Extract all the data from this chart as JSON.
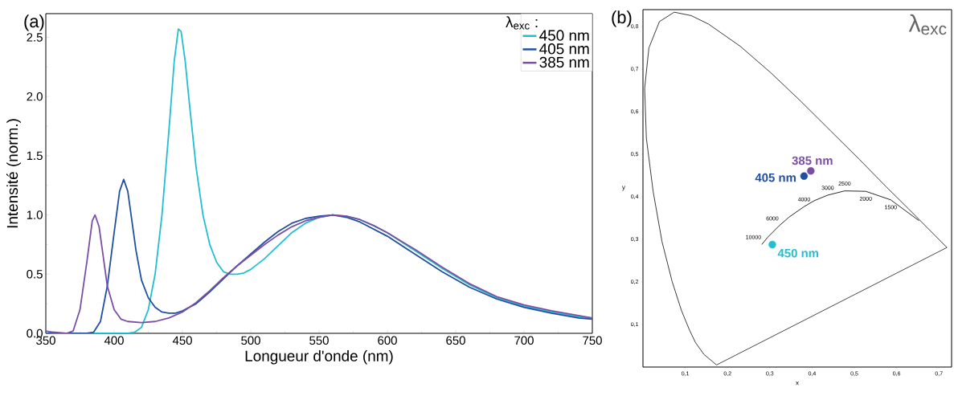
{
  "chart_data": [
    {
      "type": "line",
      "xlabel": "Longueur d'onde (nm)",
      "ylabel": "Intensité (norm.)",
      "legend_title": "λ$_{exc}$ :",
      "legend": "top right",
      "annotations": [
        "(a)"
      ],
      "xlim": [
        350,
        750
      ],
      "ylim": [
        0,
        2.7
      ],
      "xticks": [
        350,
        400,
        450,
        500,
        550,
        600,
        650,
        700,
        750
      ],
      "yticks": [
        {
          "value": 0,
          "label": "0.0"
        },
        {
          "value": 0.5,
          "label": "0.5"
        },
        {
          "value": 1,
          "label": "1.0"
        },
        {
          "value": 1.5,
          "label": "1.5"
        },
        {
          "value": 2,
          "label": "2.0"
        },
        {
          "value": 2.5,
          "label": "2.5"
        }
      ],
      "series": [
        {
          "name": "450 nm",
          "color": "#22bfd0",
          "x": [
            350,
            410,
            415,
            420,
            425,
            430,
            435,
            440,
            444,
            447,
            449,
            452,
            455,
            460,
            465,
            470,
            475,
            480,
            485,
            490,
            495,
            500,
            510,
            520,
            530,
            540,
            550,
            560,
            570,
            580,
            590,
            600,
            620,
            640,
            660,
            680,
            700,
            720,
            740,
            750
          ],
          "values": [
            0,
            0,
            0.01,
            0.05,
            0.2,
            0.5,
            1.0,
            1.7,
            2.3,
            2.57,
            2.55,
            2.3,
            1.95,
            1.4,
            1.0,
            0.75,
            0.6,
            0.52,
            0.5,
            0.5,
            0.51,
            0.54,
            0.63,
            0.74,
            0.85,
            0.93,
            0.98,
            1.0,
            0.99,
            0.96,
            0.91,
            0.85,
            0.7,
            0.55,
            0.41,
            0.3,
            0.23,
            0.18,
            0.14,
            0.13
          ]
        },
        {
          "name": "405 nm",
          "color": "#2150a0",
          "x": [
            350,
            380,
            385,
            390,
            395,
            400,
            404,
            407,
            410,
            413,
            416,
            420,
            425,
            430,
            435,
            440,
            445,
            450,
            460,
            470,
            480,
            490,
            500,
            510,
            520,
            530,
            540,
            550,
            560,
            570,
            580,
            590,
            600,
            620,
            640,
            660,
            680,
            700,
            720,
            740,
            750
          ],
          "values": [
            0,
            0,
            0.01,
            0.1,
            0.4,
            0.85,
            1.2,
            1.3,
            1.2,
            0.95,
            0.7,
            0.45,
            0.3,
            0.22,
            0.18,
            0.17,
            0.17,
            0.19,
            0.25,
            0.35,
            0.46,
            0.57,
            0.67,
            0.77,
            0.86,
            0.93,
            0.97,
            0.99,
            1.0,
            0.98,
            0.94,
            0.88,
            0.82,
            0.67,
            0.52,
            0.39,
            0.29,
            0.22,
            0.17,
            0.13,
            0.12
          ]
        },
        {
          "name": "385 nm",
          "color": "#7a4fa3",
          "x": [
            350,
            355,
            365,
            370,
            375,
            380,
            384,
            386,
            389,
            392,
            395,
            400,
            405,
            410,
            420,
            430,
            440,
            450,
            460,
            470,
            480,
            490,
            500,
            510,
            520,
            530,
            540,
            550,
            560,
            570,
            580,
            590,
            600,
            620,
            640,
            660,
            680,
            700,
            720,
            730,
            740,
            750
          ],
          "values": [
            0.02,
            0.01,
            0,
            0.02,
            0.2,
            0.6,
            0.95,
            1.0,
            0.9,
            0.65,
            0.4,
            0.2,
            0.12,
            0.1,
            0.09,
            0.1,
            0.13,
            0.18,
            0.26,
            0.36,
            0.47,
            0.57,
            0.66,
            0.75,
            0.83,
            0.9,
            0.95,
            0.98,
            1.0,
            0.99,
            0.96,
            0.91,
            0.85,
            0.71,
            0.56,
            0.42,
            0.31,
            0.24,
            0.19,
            0.17,
            0.15,
            0.13
          ]
        }
      ]
    },
    {
      "type": "scatter",
      "title": "λ$_{exc}$",
      "xlabel": "x",
      "ylabel": "y",
      "annotations": [
        "(b)",
        {
          "text": "10000",
          "x": 0.281,
          "y": 0.288
        },
        {
          "text": "6000",
          "x": 0.322,
          "y": 0.332
        },
        {
          "text": "4000",
          "x": 0.381,
          "y": 0.377
        },
        {
          "text": "3000",
          "x": 0.437,
          "y": 0.404
        },
        {
          "text": "2500",
          "x": 0.477,
          "y": 0.414
        },
        {
          "text": "2000",
          "x": 0.527,
          "y": 0.413
        },
        {
          "text": "1500",
          "x": 0.586,
          "y": 0.393
        }
      ],
      "xlim": [
        0,
        0.73
      ],
      "ylim": [
        0,
        0.84
      ],
      "xticks": [
        {
          "value": 0.1,
          "label": "0,1"
        },
        {
          "value": 0.2,
          "label": "0,2"
        },
        {
          "value": 0.3,
          "label": "0,3"
        },
        {
          "value": 0.4,
          "label": "0,4"
        },
        {
          "value": 0.5,
          "label": "0,5"
        },
        {
          "value": 0.6,
          "label": "0,6"
        },
        {
          "value": 0.7,
          "label": "0,7"
        }
      ],
      "yticks": [
        {
          "value": 0.1,
          "label": "0,1"
        },
        {
          "value": 0.2,
          "label": "0,2"
        },
        {
          "value": 0.3,
          "label": "0,3"
        },
        {
          "value": 0.4,
          "label": "0,4"
        },
        {
          "value": 0.5,
          "label": "0,5"
        },
        {
          "value": 0.6,
          "label": "0,6"
        },
        {
          "value": 0.7,
          "label": "0,7"
        },
        {
          "value": 0.8,
          "label": "0,8"
        }
      ],
      "series": [
        {
          "type": "line",
          "color": "#262626",
          "x": [
            0.174,
            0.144,
            0.124,
            0.11,
            0.091,
            0.069,
            0.045,
            0.024,
            0.008,
            0.004,
            0.014,
            0.039,
            0.074,
            0.114,
            0.155,
            0.23,
            0.302,
            0.373,
            0.444,
            0.513,
            0.575,
            0.627,
            0.692,
            0.719
          ],
          "values": [
            0.005,
            0.03,
            0.058,
            0.087,
            0.133,
            0.201,
            0.295,
            0.413,
            0.538,
            0.655,
            0.75,
            0.812,
            0.834,
            0.826,
            0.806,
            0.754,
            0.692,
            0.625,
            0.555,
            0.487,
            0.424,
            0.373,
            0.308,
            0.281
          ]
        },
        {
          "type": "line",
          "color": "#333333",
          "x": [
            0.174,
            0.719
          ],
          "values": [
            0.005,
            0.281
          ]
        },
        {
          "type": "line",
          "color": "#111111",
          "x": [
            0.281,
            0.295,
            0.322,
            0.345,
            0.381,
            0.405,
            0.437,
            0.477,
            0.527,
            0.586,
            0.653
          ],
          "values": [
            0.288,
            0.305,
            0.332,
            0.352,
            0.377,
            0.391,
            0.404,
            0.414,
            0.413,
            0.393,
            0.344
          ]
        },
        {
          "name": "450 nm",
          "color": "#22bfd0",
          "marker": "circle",
          "x": [
            0.306
          ],
          "values": [
            0.288
          ]
        },
        {
          "name": "405 nm",
          "color": "#2150a0",
          "marker": "circle",
          "x": [
            0.381
          ],
          "values": [
            0.449
          ]
        },
        {
          "name": "385 nm",
          "color": "#7a4fa3",
          "marker": "circle",
          "x": [
            0.397
          ],
          "values": [
            0.461
          ]
        }
      ]
    }
  ]
}
